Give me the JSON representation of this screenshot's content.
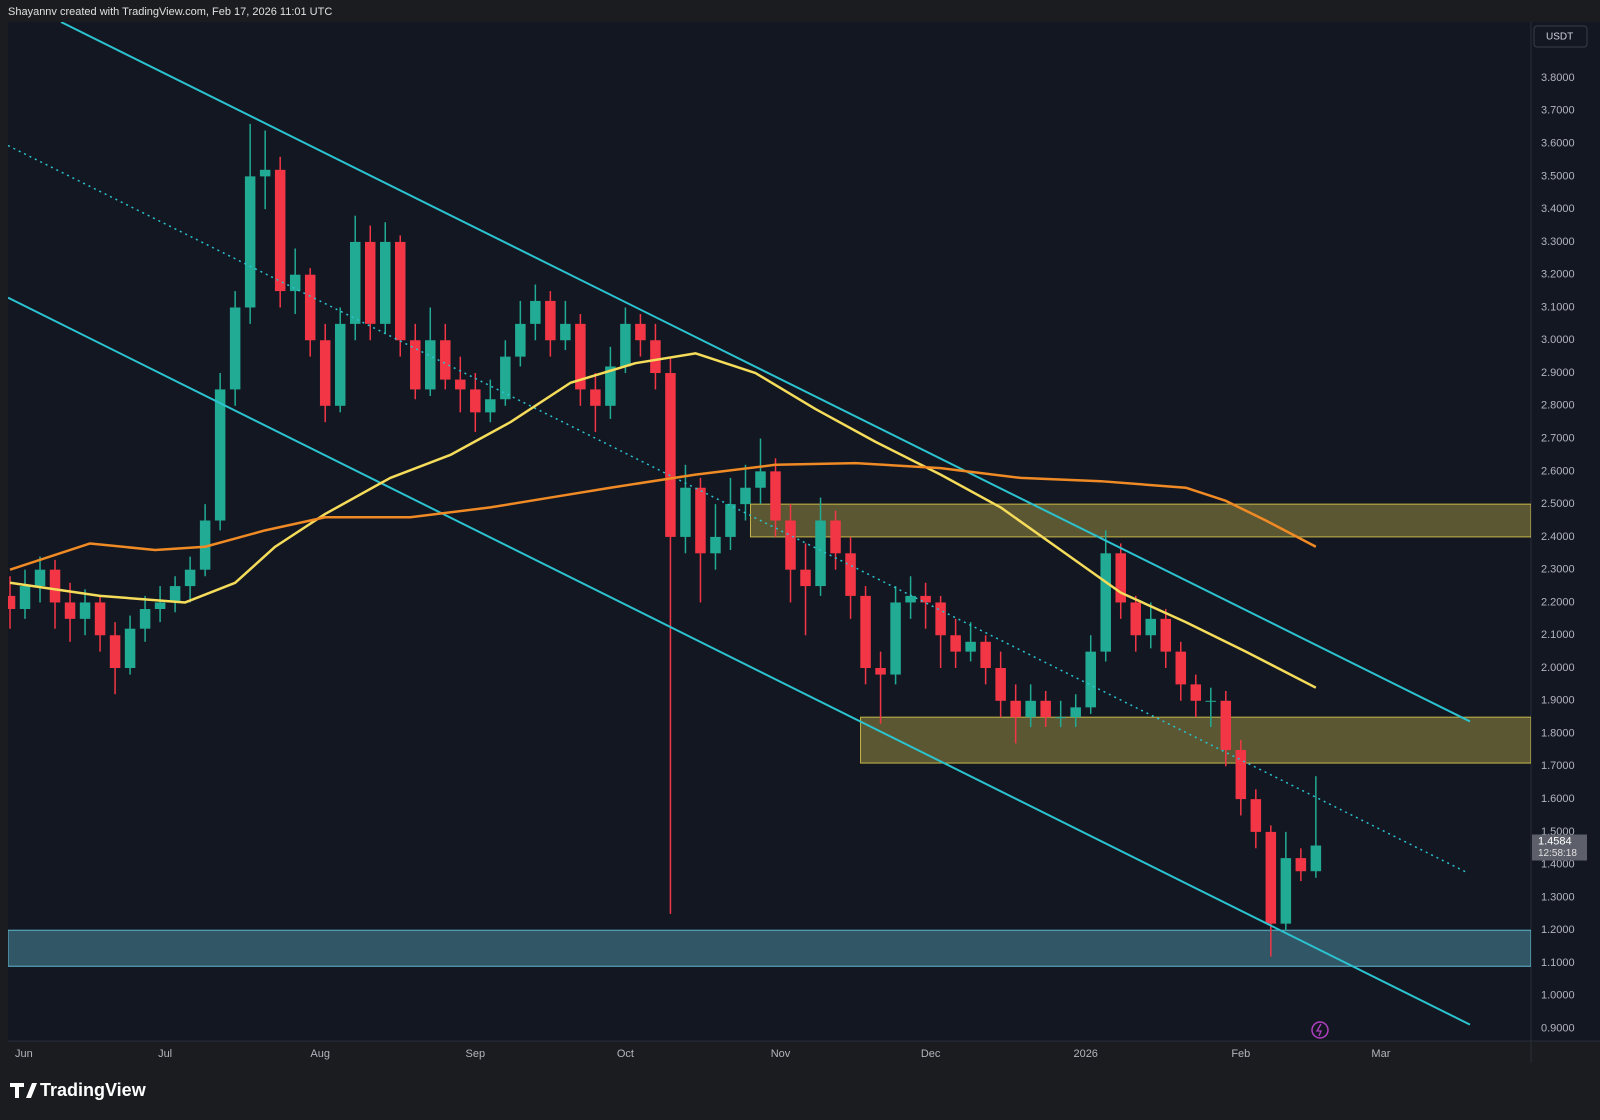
{
  "header": "Shayannv created with TradingView.com, Feb 17, 2026 11:01 UTC",
  "brand": "TradingView",
  "chart_data": {
    "type": "candlestick",
    "currency": "USDT",
    "up_color": "#22ab94",
    "down_color": "#f23645",
    "xlim": [
      -1.4,
      303
    ],
    "xticks": [
      {
        "value": 0,
        "label": "Jun"
      },
      {
        "value": 30,
        "label": "Jul"
      },
      {
        "value": 61,
        "label": "Aug"
      },
      {
        "value": 92,
        "label": "Sep"
      },
      {
        "value": 122,
        "label": "Oct"
      },
      {
        "value": 153,
        "label": "Nov"
      },
      {
        "value": 183,
        "label": "Dec"
      },
      {
        "value": 214,
        "label": "2026"
      },
      {
        "value": 245,
        "label": "Feb"
      },
      {
        "value": 273,
        "label": "Mar"
      }
    ],
    "ylim": [
      0.862,
      3.971
    ],
    "yticks": [
      {
        "value": 0.9,
        "label": "0.9000"
      },
      {
        "value": 1.0,
        "label": "1.0000"
      },
      {
        "value": 1.1,
        "label": "1.1000"
      },
      {
        "value": 1.2,
        "label": "1.2000"
      },
      {
        "value": 1.3,
        "label": "1.3000"
      },
      {
        "value": 1.4,
        "label": "1.4000"
      },
      {
        "value": 1.5,
        "label": "1.5000"
      },
      {
        "value": 1.6,
        "label": "1.6000"
      },
      {
        "value": 1.7,
        "label": "1.7000"
      },
      {
        "value": 1.8,
        "label": "1.8000"
      },
      {
        "value": 1.9,
        "label": "1.9000"
      },
      {
        "value": 2.0,
        "label": "2.0000"
      },
      {
        "value": 2.1,
        "label": "2.1000"
      },
      {
        "value": 2.2,
        "label": "2.2000"
      },
      {
        "value": 2.3,
        "label": "2.3000"
      },
      {
        "value": 2.4,
        "label": "2.4000"
      },
      {
        "value": 2.5,
        "label": "2.5000"
      },
      {
        "value": 2.6,
        "label": "2.6000"
      },
      {
        "value": 2.7,
        "label": "2.7000"
      },
      {
        "value": 2.8,
        "label": "2.8000"
      },
      {
        "value": 2.9,
        "label": "2.9000"
      },
      {
        "value": 3.0,
        "label": "3.0000"
      },
      {
        "value": 3.1,
        "label": "3.1000"
      },
      {
        "value": 3.2,
        "label": "3.2000"
      },
      {
        "value": 3.3,
        "label": "3.3000"
      },
      {
        "value": 3.4,
        "label": "3.4000"
      },
      {
        "value": 3.5,
        "label": "3.5000"
      },
      {
        "value": 3.6,
        "label": "3.6000"
      },
      {
        "value": 3.7,
        "label": "3.7000"
      },
      {
        "value": 3.8,
        "label": "3.8000"
      }
    ],
    "grid": false,
    "x": [
      -1,
      2,
      5,
      8,
      11,
      14,
      17,
      20,
      23,
      26,
      29,
      32,
      35,
      38,
      41,
      44,
      47,
      50,
      53,
      56,
      59,
      62,
      65,
      68,
      71,
      74,
      77,
      80,
      83,
      86,
      89,
      92,
      95,
      98,
      101,
      104,
      107,
      110,
      113,
      116,
      119,
      122,
      125,
      128,
      131,
      134,
      137,
      140,
      143,
      146,
      149,
      152,
      155,
      158,
      161,
      164,
      167,
      170,
      173,
      176,
      179,
      182,
      185,
      188,
      191,
      194,
      197,
      200,
      203,
      206,
      209,
      212,
      215,
      218,
      221,
      224,
      227,
      230,
      233,
      236,
      239,
      242,
      245,
      248,
      251,
      254,
      257,
      260
    ],
    "ohlc": [
      [
        2.22,
        2.28,
        2.12,
        2.18
      ],
      [
        2.18,
        2.3,
        2.15,
        2.25
      ],
      [
        2.25,
        2.34,
        2.2,
        2.3
      ],
      [
        2.3,
        2.33,
        2.12,
        2.2
      ],
      [
        2.2,
        2.26,
        2.08,
        2.15
      ],
      [
        2.15,
        2.24,
        2.1,
        2.2
      ],
      [
        2.2,
        2.22,
        2.05,
        2.1
      ],
      [
        2.1,
        2.14,
        1.92,
        2.0
      ],
      [
        2.0,
        2.16,
        1.98,
        2.12
      ],
      [
        2.12,
        2.22,
        2.08,
        2.18
      ],
      [
        2.18,
        2.25,
        2.14,
        2.2
      ],
      [
        2.2,
        2.28,
        2.17,
        2.25
      ],
      [
        2.25,
        2.34,
        2.2,
        2.3
      ],
      [
        2.3,
        2.5,
        2.28,
        2.45
      ],
      [
        2.45,
        2.9,
        2.42,
        2.85
      ],
      [
        2.85,
        3.15,
        2.8,
        3.1
      ],
      [
        3.1,
        3.66,
        3.05,
        3.5
      ],
      [
        3.5,
        3.64,
        3.4,
        3.52
      ],
      [
        3.52,
        3.56,
        3.1,
        3.15
      ],
      [
        3.15,
        3.28,
        3.08,
        3.2
      ],
      [
        3.2,
        3.22,
        2.95,
        3.0
      ],
      [
        3.0,
        3.05,
        2.75,
        2.8
      ],
      [
        2.8,
        3.1,
        2.78,
        3.05
      ],
      [
        3.05,
        3.38,
        3.0,
        3.3
      ],
      [
        3.3,
        3.35,
        3.0,
        3.05
      ],
      [
        3.05,
        3.36,
        3.02,
        3.3
      ],
      [
        3.3,
        3.32,
        2.95,
        3.0
      ],
      [
        3.0,
        3.05,
        2.82,
        2.85
      ],
      [
        2.85,
        3.1,
        2.83,
        3.0
      ],
      [
        3.0,
        3.05,
        2.85,
        2.88
      ],
      [
        2.88,
        2.95,
        2.78,
        2.85
      ],
      [
        2.85,
        2.9,
        2.72,
        2.78
      ],
      [
        2.78,
        2.88,
        2.75,
        2.82
      ],
      [
        2.82,
        3.0,
        2.8,
        2.95
      ],
      [
        2.95,
        3.12,
        2.92,
        3.05
      ],
      [
        3.05,
        3.17,
        3.0,
        3.12
      ],
      [
        3.12,
        3.15,
        2.95,
        3.0
      ],
      [
        3.0,
        3.12,
        2.97,
        3.05
      ],
      [
        3.05,
        3.08,
        2.8,
        2.85
      ],
      [
        2.85,
        2.9,
        2.72,
        2.8
      ],
      [
        2.8,
        2.98,
        2.76,
        2.92
      ],
      [
        2.92,
        3.1,
        2.9,
        3.05
      ],
      [
        3.05,
        3.08,
        2.95,
        3.0
      ],
      [
        3.0,
        3.05,
        2.85,
        2.9
      ],
      [
        2.9,
        2.95,
        1.25,
        2.4
      ],
      [
        2.4,
        2.62,
        2.35,
        2.55
      ],
      [
        2.55,
        2.58,
        2.2,
        2.35
      ],
      [
        2.35,
        2.5,
        2.3,
        2.4
      ],
      [
        2.4,
        2.58,
        2.36,
        2.5
      ],
      [
        2.5,
        2.62,
        2.45,
        2.55
      ],
      [
        2.55,
        2.7,
        2.5,
        2.6
      ],
      [
        2.6,
        2.64,
        2.4,
        2.45
      ],
      [
        2.45,
        2.5,
        2.2,
        2.3
      ],
      [
        2.3,
        2.38,
        2.1,
        2.25
      ],
      [
        2.25,
        2.52,
        2.22,
        2.45
      ],
      [
        2.45,
        2.48,
        2.3,
        2.35
      ],
      [
        2.35,
        2.4,
        2.15,
        2.22
      ],
      [
        2.22,
        2.25,
        1.95,
        2.0
      ],
      [
        2.0,
        2.05,
        1.83,
        1.98
      ],
      [
        1.98,
        2.25,
        1.95,
        2.2
      ],
      [
        2.2,
        2.28,
        2.15,
        2.22
      ],
      [
        2.22,
        2.26,
        2.12,
        2.2
      ],
      [
        2.2,
        2.22,
        2.0,
        2.1
      ],
      [
        2.1,
        2.15,
        2.0,
        2.05
      ],
      [
        2.05,
        2.14,
        2.02,
        2.08
      ],
      [
        2.08,
        2.1,
        1.95,
        2.0
      ],
      [
        2.0,
        2.05,
        1.85,
        1.9
      ],
      [
        1.9,
        1.95,
        1.77,
        1.85
      ],
      [
        1.85,
        1.95,
        1.82,
        1.9
      ],
      [
        1.9,
        1.93,
        1.82,
        1.85
      ],
      [
        1.85,
        1.9,
        1.82,
        1.85
      ],
      [
        1.85,
        1.92,
        1.82,
        1.88
      ],
      [
        1.88,
        2.1,
        1.86,
        2.05
      ],
      [
        2.05,
        2.42,
        2.02,
        2.35
      ],
      [
        2.35,
        2.38,
        2.15,
        2.2
      ],
      [
        2.2,
        2.22,
        2.05,
        2.1
      ],
      [
        2.1,
        2.2,
        2.06,
        2.15
      ],
      [
        2.15,
        2.18,
        2.0,
        2.05
      ],
      [
        2.05,
        2.08,
        1.9,
        1.95
      ],
      [
        1.95,
        1.98,
        1.85,
        1.9
      ],
      [
        1.9,
        1.94,
        1.82,
        1.9
      ],
      [
        1.9,
        1.93,
        1.7,
        1.75
      ],
      [
        1.75,
        1.78,
        1.55,
        1.6
      ],
      [
        1.6,
        1.63,
        1.45,
        1.5
      ],
      [
        1.5,
        1.52,
        1.12,
        1.22
      ],
      [
        1.22,
        1.5,
        1.2,
        1.42
      ],
      [
        1.42,
        1.45,
        1.35,
        1.38
      ],
      [
        1.38,
        1.67,
        1.36,
        1.4584
      ]
    ],
    "moving_averages": [
      {
        "color": "#f5dc5a",
        "x": [
          -1,
          17,
          34,
          44,
          52,
          62,
          75,
          87,
          99,
          111,
          124,
          136,
          148,
          160,
          172,
          185,
          197,
          209,
          221,
          234,
          246,
          260
        ],
        "values": [
          2.26,
          2.22,
          2.2,
          2.26,
          2.37,
          2.47,
          2.58,
          2.65,
          2.75,
          2.87,
          2.93,
          2.96,
          2.9,
          2.79,
          2.69,
          2.59,
          2.49,
          2.36,
          2.23,
          2.14,
          2.05,
          1.94
        ]
      },
      {
        "color": "#f08a24",
        "x": [
          -1,
          15,
          28,
          38,
          50,
          62,
          79,
          95,
          107,
          119,
          136,
          152,
          168,
          185,
          201,
          217,
          234,
          242,
          250,
          260
        ],
        "values": [
          2.3,
          2.38,
          2.36,
          2.37,
          2.42,
          2.46,
          2.46,
          2.49,
          2.52,
          2.55,
          2.59,
          2.62,
          2.625,
          2.61,
          2.58,
          2.57,
          2.55,
          2.51,
          2.45,
          2.37
        ]
      }
    ],
    "trendlines": [
      {
        "color": "#2bc3cf",
        "style": "solid",
        "x": [
          9.2,
          290.8
        ],
        "values": [
          3.971,
          1.837
        ]
      },
      {
        "color": "#2bc3cf",
        "style": "dotted",
        "x": [
          -1.4,
          290.2
        ],
        "values": [
          3.594,
          1.376
        ]
      },
      {
        "color": "#2bc3cf",
        "style": "solid",
        "x": [
          -1.4,
          290.8
        ],
        "values": [
          3.13,
          0.912
        ]
      }
    ],
    "zones": [
      {
        "color": "#c8b84a",
        "x": [
          147,
          303
        ],
        "values": [
          2.4,
          2.5
        ]
      },
      {
        "color": "#c8b84a",
        "x": [
          169,
          303
        ],
        "values": [
          1.71,
          1.85
        ]
      },
      {
        "color": "#5fb8d0",
        "x": [
          -1.4,
          303
        ],
        "values": [
          1.09,
          1.2
        ]
      }
    ],
    "last_price": 1.4584,
    "countdown": "12:58:18"
  }
}
